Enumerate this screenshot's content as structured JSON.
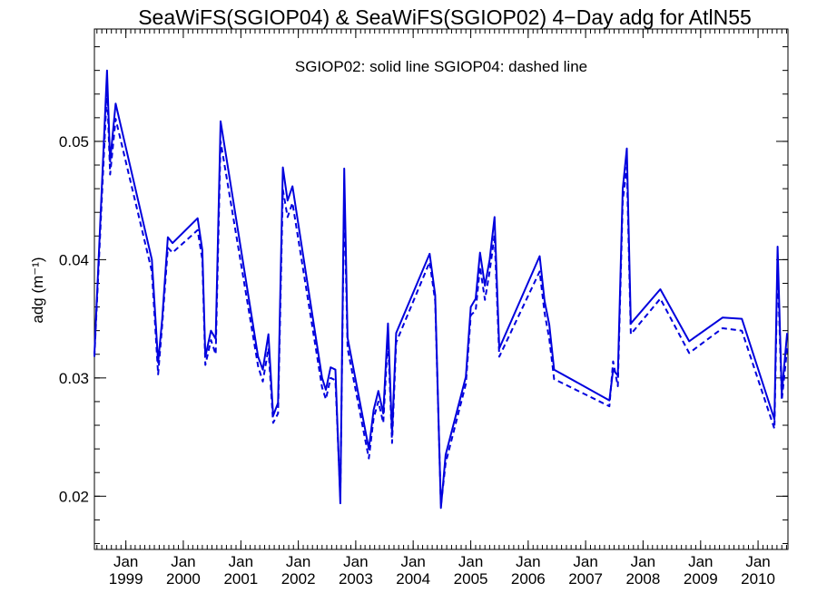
{
  "chart_data": {
    "type": "line",
    "title": "SeaWiFS(SGIOP04) & SeaWiFS(SGIOP02) 4−Day adg for AtlN55",
    "annotation": "SGIOP02: solid line   SGIOP04: dashed line",
    "ylabel": "adg (m⁻¹)",
    "xlabel": "",
    "ylim": [
      0.0155,
      0.0595
    ],
    "xlim": [
      "1998-06-15",
      "2010-07-10"
    ],
    "yticks": [
      "0.02",
      "0.03",
      "0.04",
      "0.05"
    ],
    "xticks_month": [
      "Jan",
      "Jan",
      "Jan",
      "Jan",
      "Jan",
      "Jan",
      "Jan",
      "Jan",
      "Jan",
      "Jan",
      "Jan",
      "Jan"
    ],
    "xticks_year": [
      "1999",
      "2000",
      "2001",
      "2002",
      "2003",
      "2004",
      "2005",
      "2006",
      "2007",
      "2008",
      "2009",
      "2010"
    ],
    "line_color": "#0000dd",
    "series": [
      {
        "name": "SGIOP02",
        "style": "solid",
        "points": [
          [
            "1998-06-15",
            0.032
          ],
          [
            "1998-09-03",
            0.056
          ],
          [
            "1998-09-23",
            0.0483
          ],
          [
            "1998-10-28",
            0.0532
          ],
          [
            "1999-06-15",
            0.04
          ],
          [
            "1999-07-25",
            0.0313
          ],
          [
            "1999-08-20",
            0.035
          ],
          [
            "1999-09-25",
            0.0419
          ],
          [
            "1999-10-25",
            0.0414
          ],
          [
            "2000-04-01",
            0.0435
          ],
          [
            "2000-05-01",
            0.0408
          ],
          [
            "2000-05-20",
            0.0318
          ],
          [
            "2000-06-25",
            0.034
          ],
          [
            "2000-07-25",
            0.0333
          ],
          [
            "2000-08-25",
            0.0517
          ],
          [
            "2001-04-20",
            0.0318
          ],
          [
            "2001-05-20",
            0.0307
          ],
          [
            "2001-06-25",
            0.0337
          ],
          [
            "2001-07-25",
            0.0268
          ],
          [
            "2001-08-25",
            0.0279
          ],
          [
            "2001-09-25",
            0.0478
          ],
          [
            "2001-10-25",
            0.045
          ],
          [
            "2001-11-25",
            0.0462
          ],
          [
            "2002-06-01",
            0.03
          ],
          [
            "2002-06-25",
            0.029
          ],
          [
            "2002-07-25",
            0.0309
          ],
          [
            "2002-08-25",
            0.0307
          ],
          [
            "2002-09-25",
            0.0194
          ],
          [
            "2002-10-20",
            0.0477
          ],
          [
            "2002-11-10",
            0.0334
          ],
          [
            "2003-03-25",
            0.024
          ],
          [
            "2003-04-25",
            0.0273
          ],
          [
            "2003-05-25",
            0.0289
          ],
          [
            "2003-06-25",
            0.027
          ],
          [
            "2003-07-25",
            0.0346
          ],
          [
            "2003-08-20",
            0.0253
          ],
          [
            "2003-09-15",
            0.0338
          ],
          [
            "2004-04-15",
            0.0405
          ],
          [
            "2004-05-20",
            0.037
          ],
          [
            "2004-06-25",
            0.019
          ],
          [
            "2004-07-25",
            0.0235
          ],
          [
            "2004-12-01",
            0.0301
          ],
          [
            "2005-01-01",
            0.036
          ],
          [
            "2005-02-01",
            0.0367
          ],
          [
            "2005-03-01",
            0.0406
          ],
          [
            "2005-04-01",
            0.0378
          ],
          [
            "2005-05-01",
            0.04
          ],
          [
            "2005-06-01",
            0.0436
          ],
          [
            "2005-07-01",
            0.0325
          ],
          [
            "2006-03-15",
            0.0403
          ],
          [
            "2006-04-15",
            0.0365
          ],
          [
            "2006-05-15",
            0.0345
          ],
          [
            "2006-06-15",
            0.0307
          ],
          [
            "2007-06-01",
            0.0281
          ],
          [
            "2007-06-25",
            0.0307
          ],
          [
            "2007-07-25",
            0.0302
          ],
          [
            "2007-08-25",
            0.046
          ],
          [
            "2007-09-20",
            0.0494
          ],
          [
            "2007-10-15",
            0.0346
          ],
          [
            "2008-04-20",
            0.0375
          ],
          [
            "2008-10-20",
            0.0331
          ],
          [
            "2009-05-20",
            0.0351
          ],
          [
            "2009-09-20",
            0.035
          ],
          [
            "2010-04-15",
            0.0265
          ],
          [
            "2010-05-05",
            0.0411
          ],
          [
            "2010-06-01",
            0.0287
          ],
          [
            "2010-07-05",
            0.0338
          ]
        ]
      },
      {
        "name": "SGIOP04",
        "style": "dashed",
        "points": [
          [
            "1998-06-15",
            0.0318
          ],
          [
            "1998-09-03",
            0.0545
          ],
          [
            "1998-09-23",
            0.0472
          ],
          [
            "1998-10-28",
            0.0519
          ],
          [
            "1999-06-15",
            0.039
          ],
          [
            "1999-07-25",
            0.0303
          ],
          [
            "1999-08-20",
            0.0345
          ],
          [
            "1999-09-25",
            0.041
          ],
          [
            "1999-10-25",
            0.0406
          ],
          [
            "2000-04-01",
            0.0425
          ],
          [
            "2000-05-01",
            0.04
          ],
          [
            "2000-05-20",
            0.0311
          ],
          [
            "2000-06-25",
            0.0332
          ],
          [
            "2000-07-25",
            0.032
          ],
          [
            "2000-08-25",
            0.05
          ],
          [
            "2001-04-20",
            0.031
          ],
          [
            "2001-05-20",
            0.0297
          ],
          [
            "2001-06-25",
            0.0325
          ],
          [
            "2001-07-25",
            0.0262
          ],
          [
            "2001-08-25",
            0.027
          ],
          [
            "2001-09-25",
            0.0459
          ],
          [
            "2001-10-25",
            0.0436
          ],
          [
            "2001-11-25",
            0.0448
          ],
          [
            "2002-06-01",
            0.0292
          ],
          [
            "2002-06-25",
            0.0282
          ],
          [
            "2002-07-25",
            0.03
          ],
          [
            "2002-08-25",
            0.0298
          ],
          [
            "2002-09-25",
            0.02
          ],
          [
            "2002-10-20",
            0.0455
          ],
          [
            "2002-11-10",
            0.0325
          ],
          [
            "2003-03-25",
            0.0232
          ],
          [
            "2003-04-25",
            0.0266
          ],
          [
            "2003-05-25",
            0.028
          ],
          [
            "2003-06-25",
            0.0262
          ],
          [
            "2003-07-25",
            0.0335
          ],
          [
            "2003-08-20",
            0.0245
          ],
          [
            "2003-09-15",
            0.033
          ],
          [
            "2004-04-15",
            0.0398
          ],
          [
            "2004-05-20",
            0.0365
          ],
          [
            "2004-06-25",
            0.0192
          ],
          [
            "2004-07-25",
            0.0228
          ],
          [
            "2004-12-01",
            0.0295
          ],
          [
            "2005-01-01",
            0.0353
          ],
          [
            "2005-02-01",
            0.0357
          ],
          [
            "2005-03-01",
            0.0394
          ],
          [
            "2005-04-01",
            0.0366
          ],
          [
            "2005-05-01",
            0.039
          ],
          [
            "2005-06-01",
            0.0421
          ],
          [
            "2005-07-01",
            0.0318
          ],
          [
            "2006-03-15",
            0.039
          ],
          [
            "2006-04-15",
            0.0355
          ],
          [
            "2006-05-15",
            0.0333
          ],
          [
            "2006-06-15",
            0.0299
          ],
          [
            "2007-06-01",
            0.0276
          ],
          [
            "2007-06-25",
            0.0314
          ],
          [
            "2007-07-25",
            0.0293
          ],
          [
            "2007-08-25",
            0.045
          ],
          [
            "2007-09-20",
            0.0478
          ],
          [
            "2007-10-15",
            0.0337
          ],
          [
            "2008-04-20",
            0.0367
          ],
          [
            "2008-10-20",
            0.0321
          ],
          [
            "2009-05-20",
            0.0342
          ],
          [
            "2009-09-20",
            0.034
          ],
          [
            "2010-04-15",
            0.0257
          ],
          [
            "2010-05-05",
            0.0396
          ],
          [
            "2010-06-01",
            0.0281
          ],
          [
            "2010-07-05",
            0.0325
          ]
        ]
      }
    ]
  }
}
